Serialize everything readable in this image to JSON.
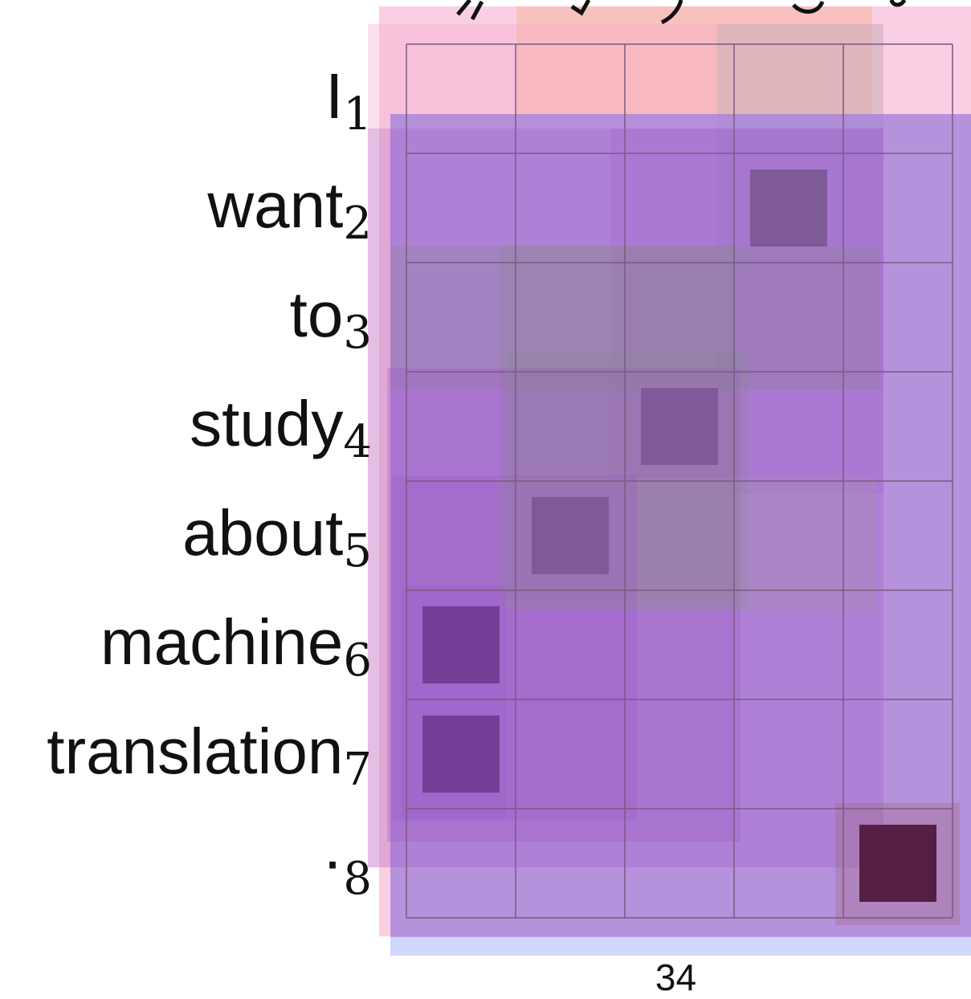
{
  "rows": [
    {
      "word": "I",
      "index": "1"
    },
    {
      "word": "want",
      "index": "2"
    },
    {
      "word": "to",
      "index": "3"
    },
    {
      "word": "study",
      "index": "4"
    },
    {
      "word": "about",
      "index": "5"
    },
    {
      "word": "machine",
      "index": "6"
    },
    {
      "word": "translation",
      "index": "7"
    },
    {
      "word": "·",
      "index": "8"
    }
  ],
  "column_count": 5,
  "alignment_cells": [
    {
      "row": 1,
      "col": 3,
      "strength": "medium"
    },
    {
      "row": 3,
      "col": 2,
      "strength": "medium"
    },
    {
      "row": 4,
      "col": 1,
      "strength": "medium"
    },
    {
      "row": 5,
      "col": 0,
      "strength": "strong"
    },
    {
      "row": 6,
      "col": 0,
      "strength": "strong"
    },
    {
      "row": 7,
      "col": 4,
      "strength": "strongest"
    }
  ],
  "colors": {
    "grid_line": "#7a5a80",
    "pink_overlay": "#f7a8cc",
    "blue_overlay": "#a8b8f8",
    "purple_overlay": "#9b59c8",
    "peach_overlay": "#f4b090",
    "medium_cell": "#7f5a98",
    "strong_cell": "#753d95",
    "strongest_cell": "#551f45",
    "word_color": "#111111"
  },
  "page_number": "34"
}
